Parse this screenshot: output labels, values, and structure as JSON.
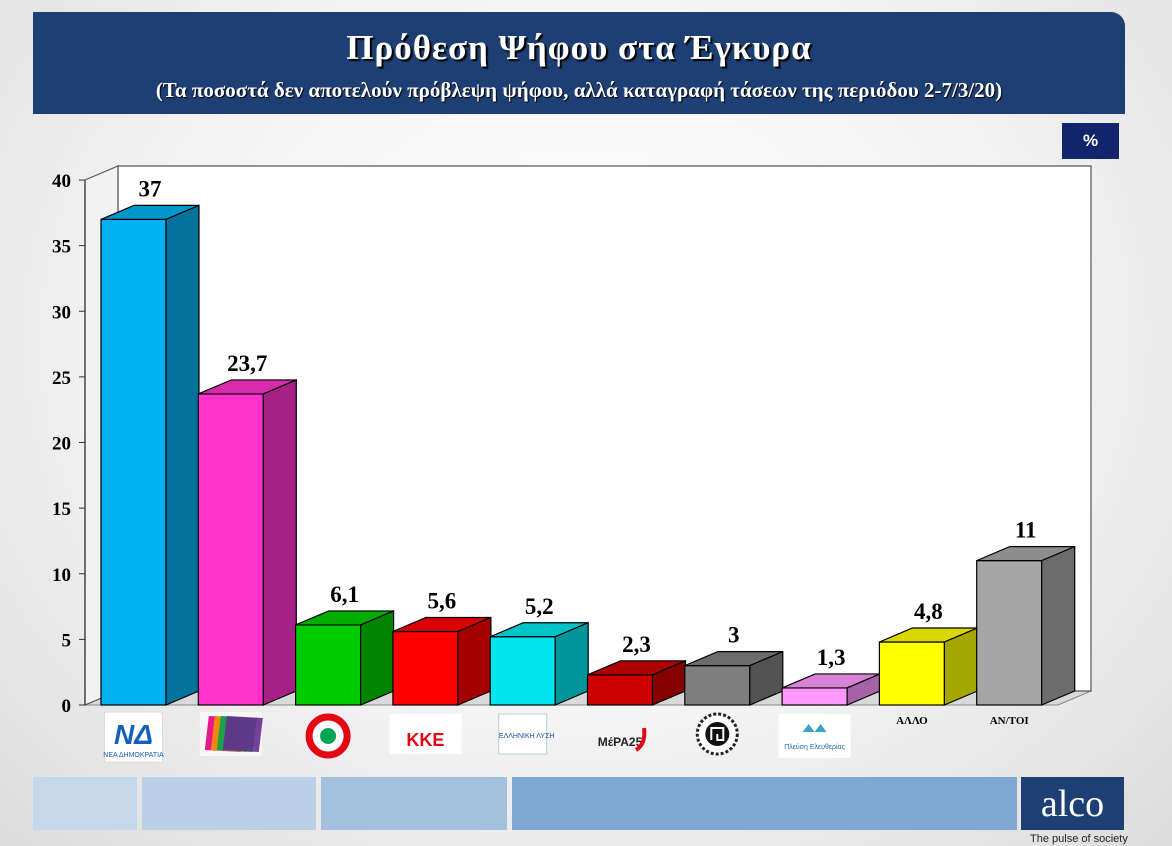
{
  "header": {
    "title": "Πρόθεση Ψήφου στα Έγκυρα",
    "subtitle": "(Τα ποσοστά δεν αποτελούν πρόβλεψη ψήφου, αλλά καταγραφή τάσεων της περιόδου 2-7/3/20)"
  },
  "unit_badge": "%",
  "footer": {
    "brand": "alco",
    "tagline": "The pulse of society"
  },
  "chart_data": {
    "type": "bar",
    "title": "Πρόθεση Ψήφου στα Έγκυρα",
    "categories": [
      "ΝΕΑ ΔΗΜΟΚΡΑΤΙΑ",
      "ΣΥΡΙΖΑ",
      "ΚΙΝΑΛ",
      "ΚΚΕ",
      "ΕΛΛΗΝΙΚΗ ΛΥΣΗ",
      "ΜέΡΑ25",
      "ΧΡΥΣΗ ΑΥΓΗ",
      "ΠΛΕΥΣΗ ΕΛΕΥΘΕΡΙΑΣ",
      "ΑΛΛΟ",
      "ΑΝ/ΤΟΙ"
    ],
    "values": [
      37,
      23.7,
      6.1,
      5.6,
      5.2,
      2.3,
      3,
      1.3,
      4.8,
      11
    ],
    "value_labels": [
      "37",
      "23,7",
      "6,1",
      "5,6",
      "5,2",
      "2,3",
      "3",
      "1,3",
      "4,8",
      "11"
    ],
    "label_text": [
      "",
      "",
      "",
      "ΚΚΕ",
      "ΕΛΛΗΝΙΚΗ ΛΥΣΗ",
      "ΜέΡΑ25",
      "",
      "Πλεύση Ελευθερίας",
      "ΑΛΛΟ",
      "ΑΝ/ΤΟΙ"
    ],
    "colors": [
      "#00b0f0",
      "#ff33cc",
      "#00cc00",
      "#ff0000",
      "#00e5ee",
      "#cc0000",
      "#7f7f7f",
      "#ff99ff",
      "#ffff00",
      "#a6a6a6"
    ],
    "ylim": [
      0,
      40
    ],
    "yticks": [
      0,
      5,
      10,
      15,
      20,
      25,
      30,
      35,
      40
    ],
    "grid": false,
    "legend": "none"
  }
}
